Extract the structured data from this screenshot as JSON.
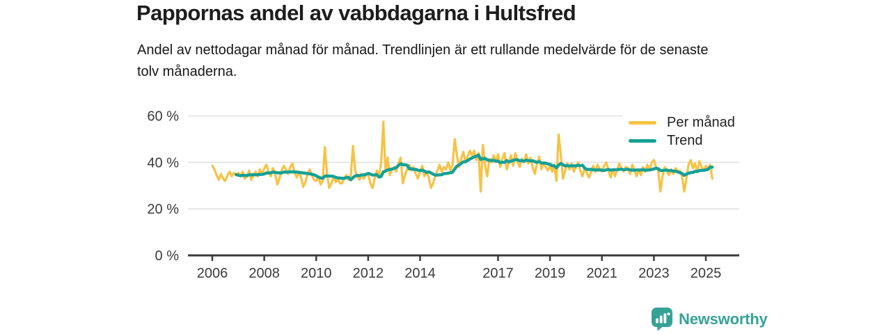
{
  "chart_data": {
    "type": "line",
    "title": "Pappornas andel av vabbdagarna i Hultsfred",
    "subtitle": "Andel av nettodagar månad för månad. Trendlinjen är ett rullande medelvärde för de senaste tolv månaderna.",
    "unit": "%",
    "frequency": "monthly",
    "x_start_year": 2006,
    "x_start_month": 1,
    "x_end_year": 2025,
    "x_end_month": 4,
    "series": [
      {
        "name": "Per månad",
        "color": "#F7C244",
        "values": [
          38.5,
          37.0,
          34.5,
          32.5,
          35.0,
          33.0,
          32.0,
          34.5,
          36.0,
          34.0,
          35.5,
          34.5,
          35.5,
          34.0,
          36.0,
          33.0,
          34.0,
          36.5,
          32.5,
          34.5,
          36.0,
          34.0,
          37.0,
          35.0,
          37.5,
          39.0,
          36.0,
          34.0,
          37.5,
          35.5,
          30.5,
          33.0,
          36.5,
          38.5,
          37.0,
          35.0,
          38.0,
          39.5,
          35.5,
          33.5,
          36.0,
          33.5,
          29.5,
          31.5,
          35.0,
          37.0,
          34.5,
          32.5,
          32.0,
          34.0,
          30.5,
          32.0,
          46.5,
          35.0,
          29.0,
          31.0,
          33.5,
          31.5,
          33.0,
          31.0,
          31.0,
          33.5,
          34.5,
          32.5,
          34.5,
          47.0,
          36.5,
          34.0,
          32.5,
          35.0,
          33.0,
          34.5,
          35.0,
          31.0,
          29.0,
          33.0,
          36.5,
          34.0,
          40.0,
          57.5,
          36.0,
          42.0,
          34.5,
          37.0,
          38.0,
          36.0,
          39.5,
          42.0,
          31.0,
          34.5,
          37.0,
          39.0,
          36.5,
          38.0,
          35.0,
          33.0,
          36.0,
          38.5,
          34.0,
          36.0,
          33.5,
          29.0,
          31.0,
          34.0,
          36.5,
          39.0,
          36.0,
          38.0,
          37.0,
          40.0,
          36.5,
          39.0,
          50.0,
          43.0,
          38.0,
          41.5,
          44.5,
          40.0,
          42.5,
          45.0,
          43.0,
          45.0,
          41.0,
          44.0,
          27.5,
          47.5,
          39.0,
          34.0,
          41.5,
          40.0,
          43.0,
          40.5,
          43.5,
          38.0,
          41.5,
          44.0,
          37.0,
          40.0,
          43.0,
          38.5,
          44.0,
          40.5,
          38.0,
          41.5,
          40.0,
          43.5,
          39.5,
          42.0,
          38.0,
          35.0,
          39.5,
          42.5,
          37.0,
          40.0,
          38.0,
          36.5,
          38.5,
          36.0,
          39.0,
          32.0,
          52.0,
          43.0,
          33.0,
          36.5,
          39.5,
          37.0,
          39.5,
          36.0,
          38.0,
          40.0,
          36.5,
          34.0,
          37.5,
          35.5,
          33.5,
          36.0,
          38.5,
          36.0,
          39.0,
          37.0,
          36.0,
          38.5,
          40.0,
          36.5,
          33.5,
          37.0,
          34.0,
          36.5,
          39.5,
          37.5,
          36.0,
          38.0,
          37.5,
          35.0,
          39.0,
          36.5,
          34.0,
          37.0,
          34.5,
          38.0,
          36.0,
          39.0,
          36.5,
          40.0,
          41.0,
          38.0,
          36.5,
          27.5,
          34.0,
          38.0,
          36.0,
          34.5,
          37.0,
          35.0,
          37.5,
          36.0,
          36.5,
          34.0,
          27.5,
          33.0,
          39.0,
          41.0,
          37.5,
          39.5,
          36.0,
          40.5,
          38.0,
          36.5,
          38.5,
          37.0,
          39.0,
          33.0
        ]
      }
    ],
    "trend": {
      "name": "Trend",
      "color": "#16A095",
      "window_months": 12
    },
    "y_axis": {
      "ticks": [
        0,
        20,
        40,
        60
      ],
      "tick_labels": [
        "0 %",
        "20 %",
        "40 %",
        "60 %"
      ],
      "range": [
        0,
        62
      ]
    },
    "x_axis": {
      "ticks": [
        2006,
        2008,
        2010,
        2012,
        2014,
        2017,
        2019,
        2021,
        2023,
        2025
      ]
    },
    "legend_position": "top-right",
    "grid": "horizontal"
  },
  "footer": {
    "brand": "Newsworthy"
  },
  "colors": {
    "grid": "#E1E1E1",
    "axis": "#3B3B3B",
    "brand": "#35A296"
  }
}
